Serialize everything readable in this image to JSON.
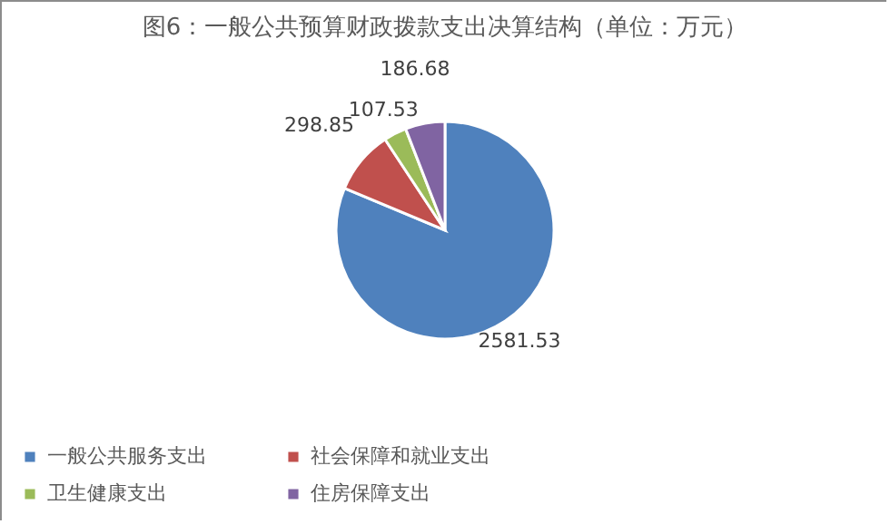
{
  "chart_data": {
    "type": "pie",
    "title": "图6：一般公共预算财政拨款支出决算结构（单位：万元）",
    "categories": [
      "一般公共服务支出",
      "社会保障和就业支出",
      "卫生健康支出",
      "住房保障支出"
    ],
    "values": [
      2581.53,
      298.85,
      107.53,
      186.68
    ],
    "colors": [
      "#4f81bd",
      "#c0504d",
      "#9bbb59",
      "#8064a2"
    ],
    "data_labels": true,
    "legend": "bottom"
  }
}
